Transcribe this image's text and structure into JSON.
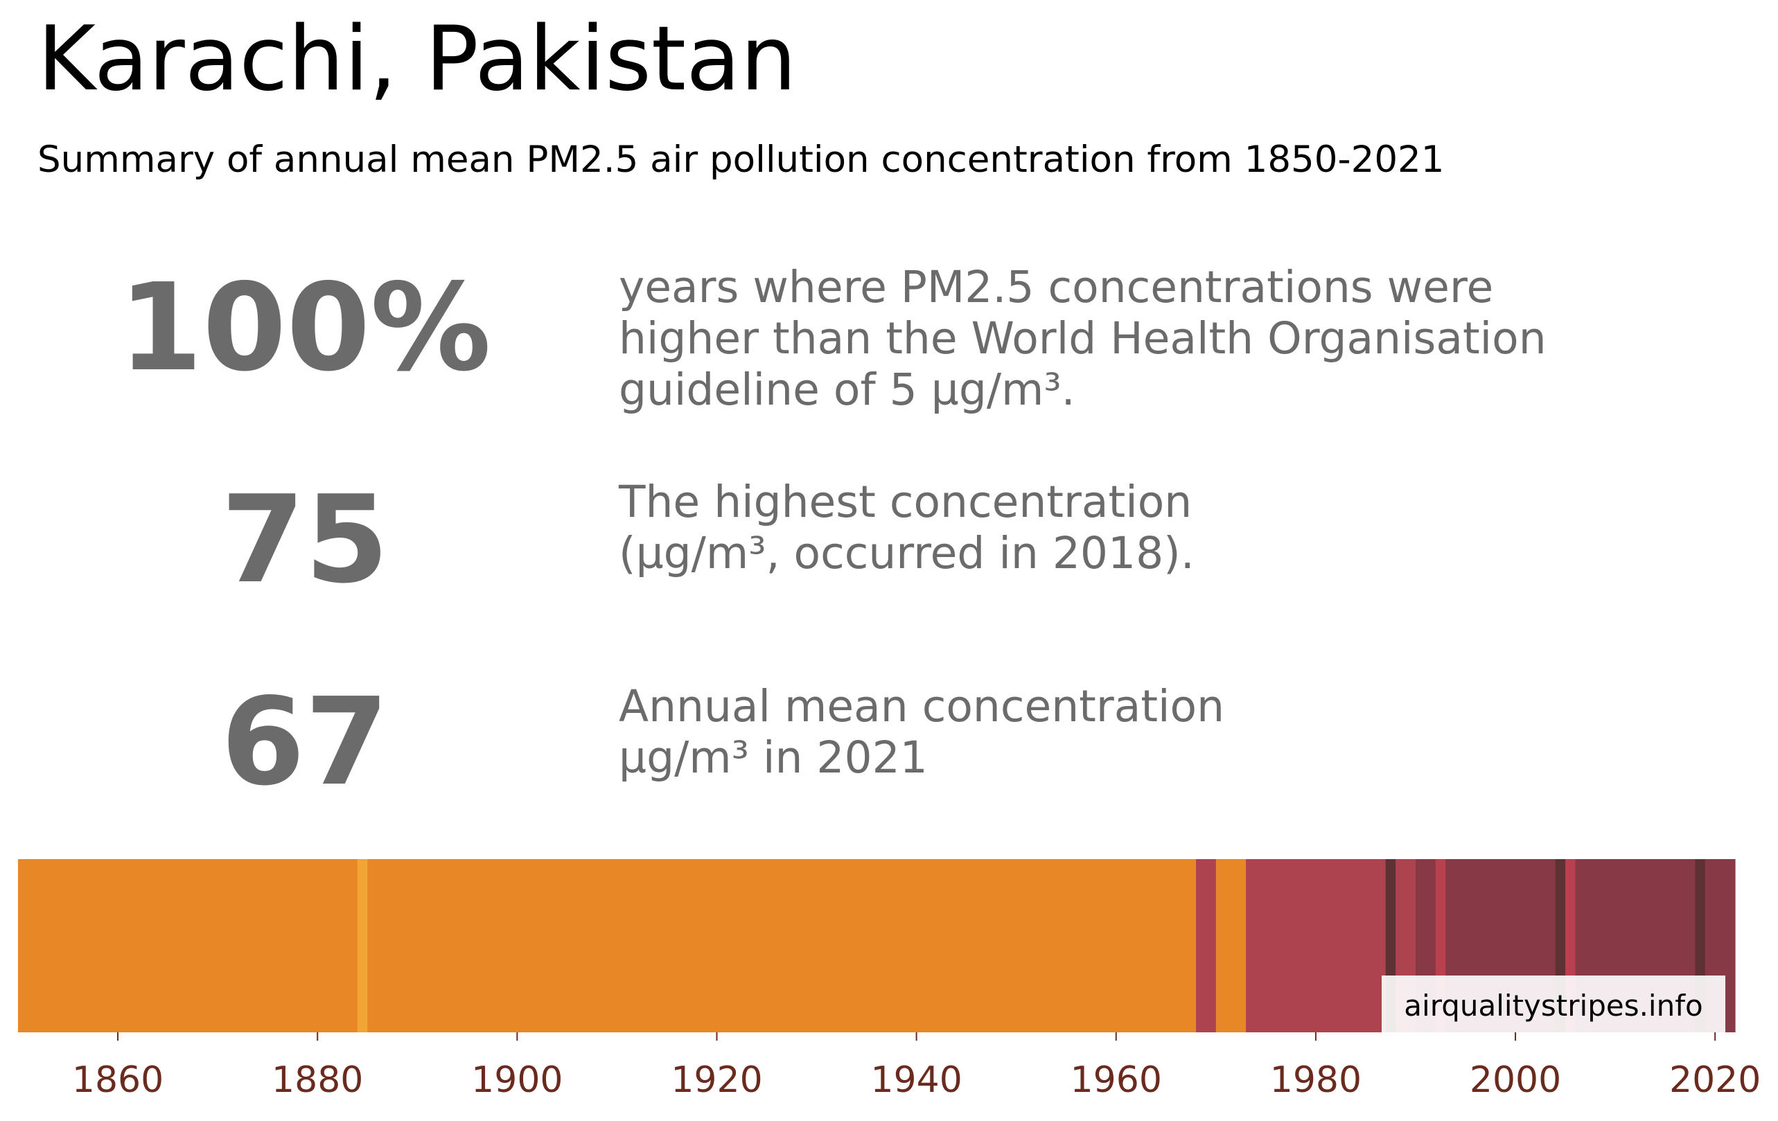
{
  "title": "Karachi, Pakistan",
  "subtitle": "Summary of annual mean PM2.5 air pollution concentration from 1850-2021",
  "stats": [
    {
      "value": "100%",
      "text_lines": [
        "years where PM2.5 concentrations were",
        "higher than the World Health Organisation",
        "guideline of 5 µg/m³."
      ]
    },
    {
      "value": "75",
      "text_lines": [
        "The highest concentration",
        "(µg/m³, occurred in 2018)."
      ]
    },
    {
      "value": "67",
      "text_lines": [
        "Annual mean concentration",
        "µg/m³ in 2021"
      ]
    }
  ],
  "watermark": "airqualitystripes.info",
  "colors": {
    "stat_gray": "#6b6b6b",
    "tick_color": "#6b2a1e",
    "orange": "#e88726",
    "light_orange": "#f2a535",
    "red": "#ae4350",
    "bright_red": "#b9414f",
    "maroon": "#873946",
    "dark_maroon": "#5e3234"
  },
  "chart_data": {
    "type": "heatmap",
    "title": "",
    "xlabel": "",
    "ylabel": "",
    "xlim": [
      1850,
      2022
    ],
    "x_ticks": [
      "1860",
      "1880",
      "1900",
      "1920",
      "1940",
      "1960",
      "1980",
      "2000",
      "2020"
    ],
    "grid": false,
    "stripes": [
      {
        "start": 1850,
        "end": 1884,
        "color": "#e88726"
      },
      {
        "start": 1884,
        "end": 1885,
        "color": "#f2a535"
      },
      {
        "start": 1885,
        "end": 1968,
        "color": "#e88726"
      },
      {
        "start": 1968,
        "end": 1970,
        "color": "#ae4350"
      },
      {
        "start": 1970,
        "end": 1973,
        "color": "#e88726"
      },
      {
        "start": 1973,
        "end": 1987,
        "color": "#ae4350"
      },
      {
        "start": 1987,
        "end": 1988,
        "color": "#5e3234"
      },
      {
        "start": 1988,
        "end": 1990,
        "color": "#ae4350"
      },
      {
        "start": 1990,
        "end": 1992,
        "color": "#873946"
      },
      {
        "start": 1992,
        "end": 1993,
        "color": "#b9414f"
      },
      {
        "start": 1993,
        "end": 2004,
        "color": "#873946"
      },
      {
        "start": 2004,
        "end": 2005,
        "color": "#5e3234"
      },
      {
        "start": 2005,
        "end": 2006,
        "color": "#b9414f"
      },
      {
        "start": 2006,
        "end": 2018,
        "color": "#873946"
      },
      {
        "start": 2018,
        "end": 2019,
        "color": "#5e3234"
      },
      {
        "start": 2019,
        "end": 2022,
        "color": "#873946"
      }
    ]
  }
}
